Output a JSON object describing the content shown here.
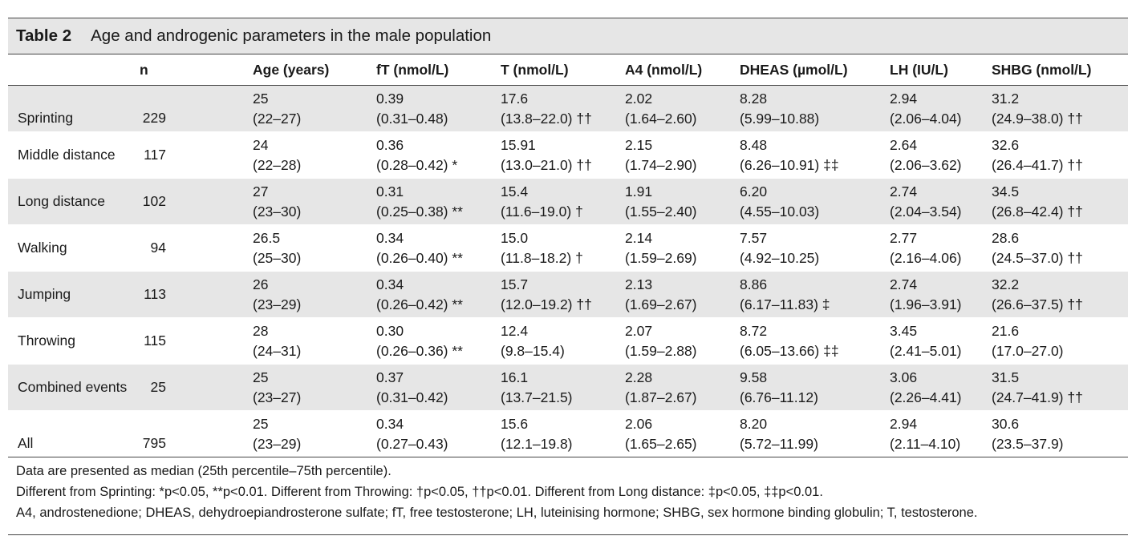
{
  "table": {
    "number": "Table 2",
    "caption": "Age and androgenic parameters in the male population",
    "headers": {
      "label": "",
      "n": "n",
      "age": "Age (years)",
      "ft": "fT (nmol/L)",
      "t": "T (nmol/L)",
      "a4": "A4 (nmol/L)",
      "dheas": "DHEAS (µmol/L)",
      "lh": "LH (IU/L)",
      "shbg": "SHBG (nmol/L)"
    },
    "rows": [
      {
        "label": "Sprinting",
        "n": "229",
        "age": [
          "25",
          "(22–27)"
        ],
        "ft": [
          "0.39",
          "(0.31–0.48)"
        ],
        "t": [
          "17.6",
          "(13.8–22.0) ††"
        ],
        "a4": [
          "2.02",
          "(1.64–2.60)"
        ],
        "dheas": [
          "8.28",
          "(5.99–10.88)"
        ],
        "lh": [
          "2.94",
          "(2.06–4.04)"
        ],
        "shbg": [
          "31.2",
          "(24.9–38.0) ††"
        ]
      },
      {
        "label": "Middle distance",
        "n": "117",
        "age": [
          "24",
          "(22–28)"
        ],
        "ft": [
          "0.36",
          "(0.28–0.42) *"
        ],
        "t": [
          "15.91",
          "(13.0–21.0) ††"
        ],
        "a4": [
          "2.15",
          "(1.74–2.90)"
        ],
        "dheas": [
          "8.48",
          "(6.26–10.91) ‡‡"
        ],
        "lh": [
          "2.64",
          "(2.06–3.62)"
        ],
        "shbg": [
          "32.6",
          "(26.4–41.7) ††"
        ]
      },
      {
        "label": "Long distance",
        "n": "102",
        "age": [
          "27",
          "(23–30)"
        ],
        "ft": [
          "0.31",
          "(0.25–0.38) **"
        ],
        "t": [
          "15.4",
          "(11.6–19.0) †"
        ],
        "a4": [
          "1.91",
          "(1.55–2.40)"
        ],
        "dheas": [
          "6.20",
          "(4.55–10.03)"
        ],
        "lh": [
          "2.74",
          "(2.04–3.54)"
        ],
        "shbg": [
          "34.5",
          "(26.8–42.4) ††"
        ]
      },
      {
        "label": "Walking",
        "n": "94",
        "age": [
          "26.5",
          "(25–30)"
        ],
        "ft": [
          "0.34",
          "(0.26–0.40) **"
        ],
        "t": [
          "15.0",
          "(11.8–18.2) †"
        ],
        "a4": [
          "2.14",
          "(1.59–2.69)"
        ],
        "dheas": [
          "7.57",
          "(4.92–10.25)"
        ],
        "lh": [
          "2.77",
          "(2.16–4.06)"
        ],
        "shbg": [
          "28.6",
          "(24.5–37.0) ††"
        ]
      },
      {
        "label": "Jumping",
        "n": "113",
        "age": [
          "26",
          "(23–29)"
        ],
        "ft": [
          "0.34",
          "(0.26–0.42) **"
        ],
        "t": [
          "15.7",
          "(12.0–19.2) ††"
        ],
        "a4": [
          "2.13",
          "(1.69–2.67)"
        ],
        "dheas": [
          "8.86",
          "(6.17–11.83) ‡"
        ],
        "lh": [
          "2.74",
          "(1.96–3.91)"
        ],
        "shbg": [
          "32.2",
          "(26.6–37.5) ††"
        ]
      },
      {
        "label": "Throwing",
        "n": "115",
        "age": [
          "28",
          "(24–31)"
        ],
        "ft": [
          "0.30",
          "(0.26–0.36) **"
        ],
        "t": [
          "12.4",
          "(9.8–15.4)"
        ],
        "a4": [
          "2.07",
          "(1.59–2.88)"
        ],
        "dheas": [
          "8.72",
          "(6.05–13.66) ‡‡"
        ],
        "lh": [
          "3.45",
          "(2.41–5.01)"
        ],
        "shbg": [
          "21.6",
          "(17.0–27.0)"
        ]
      },
      {
        "label": "Combined events",
        "n": "25",
        "age": [
          "25",
          "(23–27)"
        ],
        "ft": [
          "0.37",
          "(0.31–0.42)"
        ],
        "t": [
          "16.1",
          "(13.7–21.5)"
        ],
        "a4": [
          "2.28",
          "(1.87–2.67)"
        ],
        "dheas": [
          "9.58",
          "(6.76–11.12)"
        ],
        "lh": [
          "3.06",
          "(2.26–4.41)"
        ],
        "shbg": [
          "31.5",
          "(24.7–41.9) ††"
        ]
      },
      {
        "label": "All",
        "n": "795",
        "age": [
          "25",
          "(23–29)"
        ],
        "ft": [
          "0.34",
          "(0.27–0.43)"
        ],
        "t": [
          "15.6",
          "(12.1–19.8)"
        ],
        "a4": [
          "2.06",
          "(1.65–2.65)"
        ],
        "dheas": [
          "8.20",
          "(5.72–11.99)"
        ],
        "lh": [
          "2.94",
          "(2.11–4.10)"
        ],
        "shbg": [
          "30.6",
          "(23.5–37.9)"
        ]
      }
    ],
    "footnotes": [
      "Data are presented as median (25th percentile–75th percentile).",
      "Different from Sprinting: *p<0.05, **p<0.01. Different from Throwing: †p<0.05, ††p<0.01. Different from Long distance: ‡p<0.05, ‡‡p<0.01.",
      "A4, androstenedione; DHEAS, dehydroepiandrosterone sulfate; fT, free testosterone; LH, luteinising hormone; SHBG, sex hormone binding globulin; T, testosterone."
    ]
  }
}
